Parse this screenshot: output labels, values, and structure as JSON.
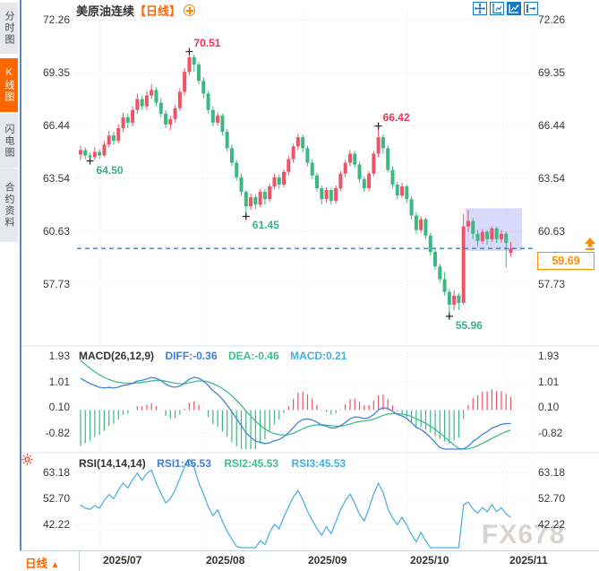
{
  "window": {
    "instrument": "美原油连续",
    "period": "【日线】"
  },
  "sidebar": {
    "tabs": [
      {
        "label": "分时图",
        "active": false
      },
      {
        "label": "K线图",
        "active": true
      },
      {
        "label": "闪电图",
        "active": false
      },
      {
        "label": "合约资料",
        "active": false
      }
    ]
  },
  "toolbar": {
    "icons": [
      "pan-crosshair",
      "axis-scale",
      "chart-mode-active",
      "collapse-right"
    ]
  },
  "colors": {
    "up": "#ef5366",
    "down": "#3cb981",
    "anno_high": "#ee3558",
    "anno_low": "#3bb185",
    "diff_line": "#4184d8",
    "dea_line": "#3fbd8c",
    "rsi_line": "#4fb2e2",
    "grid": "#e2e2e8",
    "dashed_price_line": "#1f86d8",
    "accent_orange": "#ff6600",
    "price_box_orange": "#ff8c00",
    "toolbar_blue": "#1879c0",
    "selection_box": "rgba(140,140,245,0.33)"
  },
  "price_box": {
    "value": "59.69"
  },
  "bottom_bar": {
    "period_label": "日线",
    "period_arrow": "▲"
  },
  "watermark": "FX678",
  "chart_data": {
    "type": "candlestick",
    "title": "美原油连续 日线",
    "x_axis": {
      "labels": [
        "2025/07",
        "2025/08",
        "2025/09",
        "2025/10",
        "2025/11"
      ],
      "gridline_x": [
        112,
        227,
        341,
        455,
        566
      ]
    },
    "main": {
      "y_ticks": [
        72.26,
        69.35,
        66.44,
        63.54,
        60.63,
        57.73
      ],
      "last_price": 59.69,
      "annotations": [
        {
          "index": 2,
          "price": 64.5,
          "label": "64.50",
          "kind": "low"
        },
        {
          "index": 23,
          "price": 70.51,
          "label": "70.51",
          "kind": "high"
        },
        {
          "index": 35,
          "price": 61.45,
          "label": "61.45",
          "kind": "low"
        },
        {
          "index": 63,
          "price": 66.42,
          "label": "66.42",
          "kind": "high"
        },
        {
          "index": 78,
          "price": 55.96,
          "label": "55.96",
          "kind": "low"
        }
      ],
      "highlight_box": {
        "start_index": 82,
        "end_x": 583,
        "price_top": 61.9,
        "price_bottom": 59.55
      },
      "candles_ohlc": [
        [
          64.85,
          65.35,
          64.55,
          65.1
        ],
        [
          65.1,
          65.25,
          64.6,
          64.8
        ],
        [
          64.8,
          64.95,
          64.5,
          64.7
        ],
        [
          64.7,
          65.25,
          64.55,
          65.0
        ],
        [
          65.0,
          65.15,
          64.6,
          64.8
        ],
        [
          64.8,
          65.6,
          64.7,
          65.4
        ],
        [
          65.4,
          66.15,
          65.25,
          65.9
        ],
        [
          65.9,
          66.1,
          65.4,
          65.6
        ],
        [
          65.6,
          66.5,
          65.45,
          66.3
        ],
        [
          66.3,
          67.15,
          66.1,
          66.9
        ],
        [
          66.9,
          67.1,
          66.3,
          66.6
        ],
        [
          66.6,
          67.5,
          66.4,
          67.3
        ],
        [
          67.3,
          68.2,
          67.1,
          67.9
        ],
        [
          67.9,
          68.1,
          67.3,
          67.5
        ],
        [
          67.5,
          68.35,
          67.3,
          68.1
        ],
        [
          68.1,
          68.7,
          67.9,
          68.4
        ],
        [
          68.4,
          68.55,
          67.5,
          67.7
        ],
        [
          67.7,
          67.95,
          66.9,
          67.1
        ],
        [
          67.1,
          67.3,
          66.3,
          66.5
        ],
        [
          66.5,
          67.0,
          66.2,
          66.8
        ],
        [
          66.8,
          67.6,
          66.6,
          67.4
        ],
        [
          67.4,
          68.5,
          67.25,
          68.3
        ],
        [
          68.3,
          69.6,
          68.1,
          69.4
        ],
        [
          69.4,
          70.51,
          69.2,
          70.2
        ],
        [
          70.2,
          70.35,
          69.4,
          69.8
        ],
        [
          69.8,
          69.95,
          68.7,
          68.9
        ],
        [
          68.9,
          69.1,
          67.95,
          68.2
        ],
        [
          68.2,
          68.35,
          67.1,
          67.3
        ],
        [
          67.3,
          67.5,
          66.4,
          66.6
        ],
        [
          66.6,
          67.2,
          66.45,
          67.0
        ],
        [
          67.0,
          67.1,
          65.9,
          66.1
        ],
        [
          66.1,
          66.25,
          65.0,
          65.2
        ],
        [
          65.2,
          65.4,
          64.2,
          64.4
        ],
        [
          64.4,
          64.55,
          63.4,
          63.6
        ],
        [
          63.6,
          63.8,
          62.6,
          62.8
        ],
        [
          62.8,
          62.9,
          61.45,
          62.0
        ],
        [
          62.0,
          62.7,
          61.8,
          62.5
        ],
        [
          62.5,
          62.65,
          61.85,
          62.1
        ],
        [
          62.1,
          62.95,
          61.95,
          62.8
        ],
        [
          62.8,
          62.95,
          62.1,
          62.4
        ],
        [
          62.4,
          63.25,
          62.25,
          63.1
        ],
        [
          63.1,
          63.8,
          62.95,
          63.6
        ],
        [
          63.6,
          63.75,
          62.95,
          63.2
        ],
        [
          63.2,
          64.05,
          63.05,
          63.9
        ],
        [
          63.9,
          64.8,
          63.7,
          64.6
        ],
        [
          64.6,
          65.45,
          64.4,
          65.3
        ],
        [
          65.3,
          66.0,
          65.1,
          65.8
        ],
        [
          65.8,
          65.95,
          64.95,
          65.2
        ],
        [
          65.2,
          65.35,
          64.2,
          64.4
        ],
        [
          64.4,
          64.6,
          63.5,
          63.7
        ],
        [
          63.7,
          63.85,
          62.8,
          63.0
        ],
        [
          63.0,
          63.15,
          62.1,
          62.4
        ],
        [
          62.4,
          63.05,
          62.2,
          62.9
        ],
        [
          62.9,
          63.0,
          62.1,
          62.3
        ],
        [
          62.3,
          63.15,
          62.15,
          63.0
        ],
        [
          63.0,
          63.95,
          62.85,
          63.8
        ],
        [
          63.8,
          64.55,
          63.6,
          64.4
        ],
        [
          64.4,
          65.1,
          64.2,
          64.9
        ],
        [
          64.9,
          65.05,
          64.1,
          64.3
        ],
        [
          64.3,
          64.45,
          63.3,
          63.5
        ],
        [
          63.5,
          63.65,
          62.8,
          63.0
        ],
        [
          63.0,
          63.95,
          62.85,
          63.8
        ],
        [
          63.8,
          65.05,
          63.65,
          64.9
        ],
        [
          64.9,
          66.42,
          64.7,
          65.8
        ],
        [
          65.8,
          65.95,
          64.9,
          65.2
        ],
        [
          65.2,
          65.35,
          63.85,
          64.0
        ],
        [
          64.0,
          64.2,
          63.0,
          63.2
        ],
        [
          63.2,
          63.35,
          62.4,
          62.6
        ],
        [
          62.6,
          63.3,
          62.45,
          63.1
        ],
        [
          63.1,
          63.2,
          62.2,
          62.4
        ],
        [
          62.4,
          62.55,
          61.3,
          61.5
        ],
        [
          61.5,
          61.7,
          60.5,
          60.7
        ],
        [
          60.7,
          61.45,
          60.55,
          61.3
        ],
        [
          61.3,
          61.4,
          60.2,
          60.4
        ],
        [
          60.4,
          60.55,
          59.3,
          59.5
        ],
        [
          59.5,
          59.65,
          58.5,
          58.7
        ],
        [
          58.7,
          58.85,
          57.8,
          58.0
        ],
        [
          58.0,
          58.4,
          57.1,
          57.3
        ],
        [
          57.3,
          57.45,
          55.96,
          56.6
        ],
        [
          56.6,
          57.4,
          56.3,
          57.1
        ],
        [
          57.1,
          57.25,
          56.3,
          56.7
        ],
        [
          56.7,
          61.6,
          56.6,
          60.9
        ],
        [
          60.9,
          61.8,
          60.6,
          61.2
        ],
        [
          61.2,
          61.35,
          60.2,
          60.5
        ],
        [
          60.5,
          60.7,
          59.8,
          60.1
        ],
        [
          60.1,
          60.75,
          59.95,
          60.6
        ],
        [
          60.6,
          60.7,
          59.9,
          60.2
        ],
        [
          60.2,
          60.9,
          60.05,
          60.8
        ],
        [
          60.8,
          60.9,
          60.0,
          60.2
        ],
        [
          60.2,
          60.7,
          60.0,
          60.5
        ],
        [
          60.5,
          60.6,
          58.65,
          60.0
        ],
        [
          59.45,
          60.05,
          59.25,
          59.69
        ]
      ]
    },
    "macd": {
      "label": "MACD(26,12,9)",
      "diff_label": "DIFF:-0.36",
      "dea_label": "DEA:-0.46",
      "macd_label": "MACD:0.21",
      "params": [
        26,
        12,
        9
      ],
      "diff": -0.36,
      "dea": -0.46,
      "macd": 0.21,
      "y_ticks": [
        1.93,
        1.01,
        0.1,
        -0.82
      ]
    },
    "rsi": {
      "label": "RSI(14,14,14)",
      "rsi1_label": "RSI1:45.53",
      "rsi2_label": "RSI2:45.53",
      "rsi3_label": "RSI3:45.53",
      "params": [
        14,
        14,
        14
      ],
      "rsi1": 45.53,
      "rsi2": 45.53,
      "rsi3": 45.53,
      "y_ticks": [
        63.18,
        52.7,
        42.22
      ]
    }
  }
}
